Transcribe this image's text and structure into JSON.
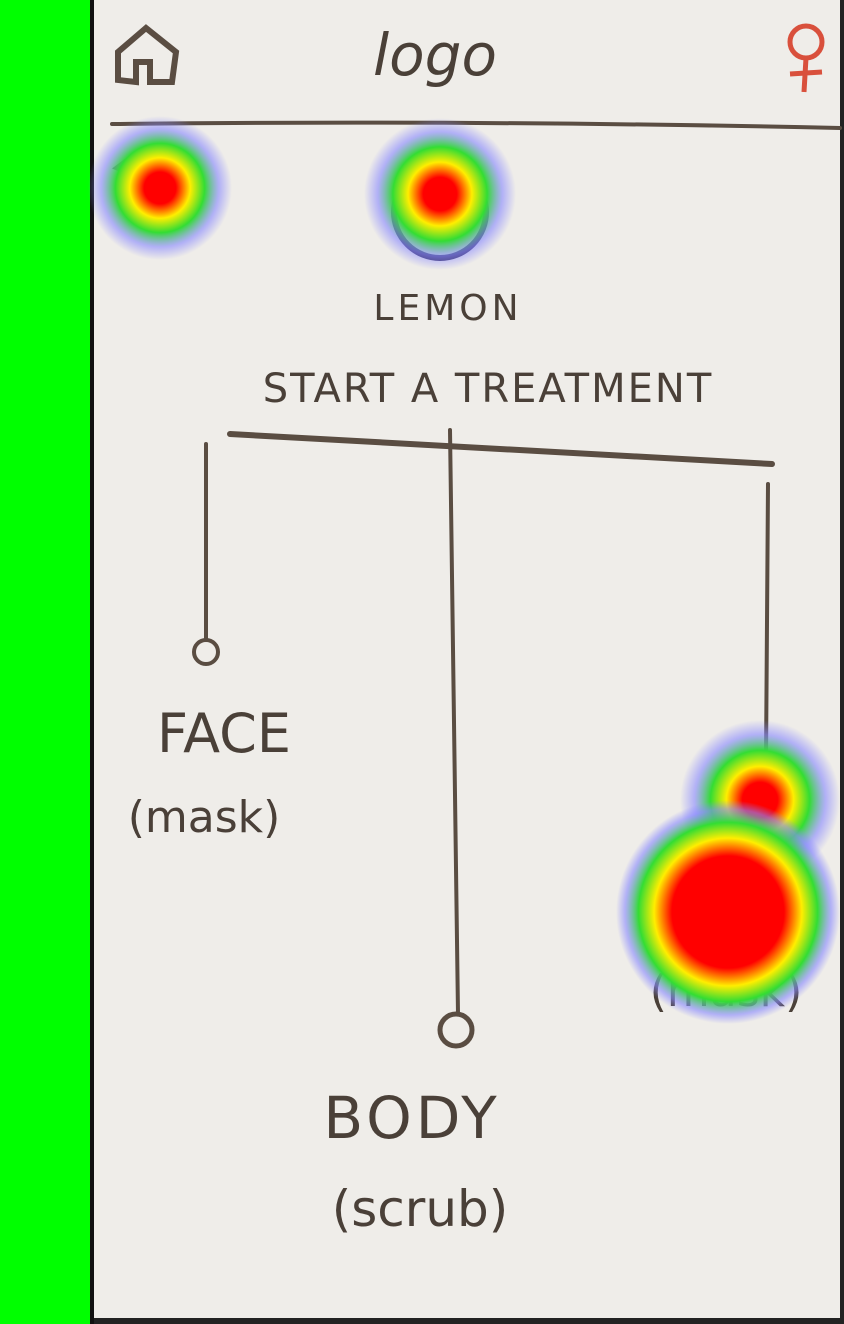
{
  "header": {
    "logo": "logo"
  },
  "brand": "LEMON",
  "title": "START A TREATMENT",
  "options": [
    {
      "label": "FACE",
      "sub": "(mask)"
    },
    {
      "label": "BODY",
      "sub": "(scrub)"
    },
    {
      "sub": "(mask)"
    }
  ]
}
